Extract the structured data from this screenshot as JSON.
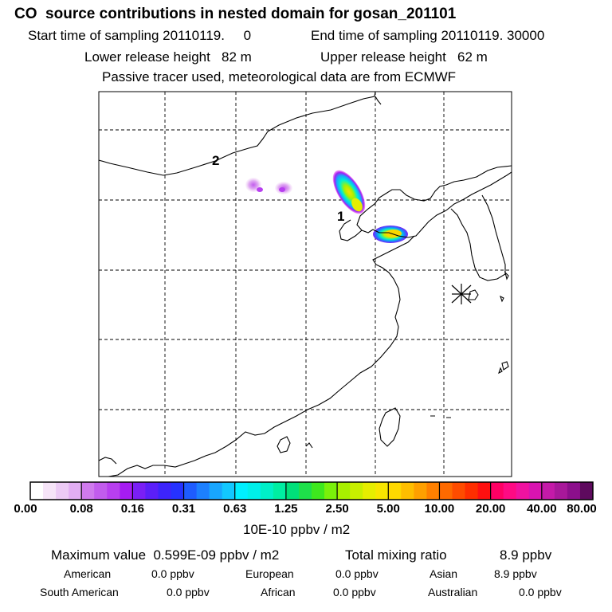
{
  "header": {
    "title": "CO  source contributions in nested domain for gosan_201101",
    "start_time": "Start time of sampling 20110119.     0",
    "end_time": "End time of sampling 20110119. 30000",
    "lower_release": "Lower release height   82 m",
    "upper_release": "Upper release height   62 m",
    "tracer_note": "Passive tracer used, meteorological data are from ECMWF"
  },
  "map": {
    "markers": [
      {
        "label": "1",
        "kind": "release-point"
      },
      {
        "label": "2",
        "kind": "release-point"
      }
    ],
    "receptor_symbol": "star-marker-icon"
  },
  "colorbar": {
    "tick_labels": [
      "0.00",
      "0.08",
      "0.16",
      "0.31",
      "0.63",
      "1.25",
      "2.50",
      "5.00",
      "10.00",
      "20.00",
      "40.00",
      "80.00"
    ],
    "units": "10E-10 ppbv / m2",
    "colors": [
      "#ffffff",
      "#f6e4f8",
      "#eccaf5",
      "#e2aef3",
      "#cf7aed",
      "#c25ced",
      "#b83ff0",
      "#a61cf2",
      "#7a1ff5",
      "#5b1ff8",
      "#3d24fb",
      "#2632ff",
      "#1e5cff",
      "#1c80ff",
      "#18a6ff",
      "#12c8ff",
      "#00f0ff",
      "#00f0ea",
      "#00f0c8",
      "#00eea2",
      "#00e07a",
      "#1ee04a",
      "#3ee81e",
      "#7af00a",
      "#a8f000",
      "#c8f000",
      "#e6ee00",
      "#f8e600",
      "#ffd800",
      "#ffbe00",
      "#ffa000",
      "#ff8000",
      "#ff6a00",
      "#ff4c00",
      "#ff2e00",
      "#ff1010",
      "#ff0064",
      "#ff0a84",
      "#f012a0",
      "#d814b0",
      "#c41aa8",
      "#a8189a",
      "#8c0f8c",
      "#5e0a5e"
    ]
  },
  "summary": {
    "max_value": "Maximum value  0.599E-09 ppbv / m2",
    "total_label": "Total mixing ratio",
    "total_value": "8.9 ppbv"
  },
  "regions": [
    {
      "name": "American",
      "value": "0.0 ppbv"
    },
    {
      "name": "European",
      "value": "0.0 ppbv"
    },
    {
      "name": "Asian",
      "value": "8.9 ppbv"
    },
    {
      "name": "South American",
      "value": "0.0 ppbv"
    },
    {
      "name": "African",
      "value": "0.0 ppbv"
    },
    {
      "name": "Australian",
      "value": "0.0 ppbv"
    }
  ]
}
